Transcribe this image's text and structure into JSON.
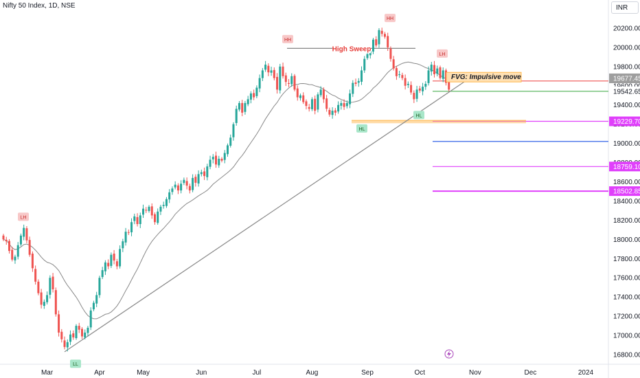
{
  "header": {
    "title": "Nifty 50 Index, 1D, NSE",
    "currency": "INR"
  },
  "colors": {
    "up": "#26a69a",
    "down": "#ef5350",
    "ma": "#888888",
    "trend": "#888888",
    "red_line": "#ef5350",
    "green_line": "#4caf50",
    "magenta": "#e040fb",
    "blue": "#1e53e5",
    "orange": "#ffb74d"
  },
  "chart_data": {
    "type": "candlestick",
    "title": "Nifty 50 Index, 1D, NSE",
    "y_axis": {
      "min": 16700,
      "max": 20350,
      "ticks": [
        16800,
        17000,
        17200,
        17400,
        17600,
        17800,
        18000,
        18200,
        18400,
        18600,
        18800,
        19000,
        19200,
        19400,
        19600,
        19800,
        20000,
        20200
      ],
      "tick_labels": [
        "16800.00",
        "17000.00",
        "17200.00",
        "17400.00",
        "17600.00",
        "17800.00",
        "18000.00",
        "18200.00",
        "18400.00",
        "18600.00",
        "18800.00",
        "19000.00",
        "19200.00",
        "19400.00",
        "19600.00",
        "19800.00",
        "20000.00",
        "20200.00"
      ]
    },
    "x_axis": {
      "labels": [
        "Mar",
        "Apr",
        "May",
        "Jun",
        "Jul",
        "Aug",
        "Sep",
        "Oct",
        "Nov",
        "Dec",
        "2024"
      ]
    },
    "price_tags": [
      {
        "label": "19677.45",
        "value": 19677.45,
        "color": "#9e9e9e"
      },
      {
        "label": "19542.65",
        "value": 19542.65,
        "color": "#ffffff"
      },
      {
        "label": "19229.70",
        "value": 19229.7,
        "color": "#e040fb"
      },
      {
        "label": "18759.10",
        "value": 18759.1,
        "color": "#e040fb"
      },
      {
        "label": "18502.85",
        "value": 18502.85,
        "color": "#e040fb"
      }
    ],
    "levels": [
      {
        "value": 19650,
        "color": "#ef5350",
        "label": ""
      },
      {
        "value": 19542.65,
        "color": "#4caf50",
        "label": ""
      },
      {
        "value": 19229.7,
        "color": "#e040fb",
        "label": ""
      },
      {
        "value": 19020,
        "color": "#1e53e5",
        "label": ""
      },
      {
        "value": 18759.1,
        "color": "#e040fb",
        "label": ""
      },
      {
        "value": 18502.85,
        "color": "#e040fb",
        "label": ""
      }
    ],
    "annotations": [
      {
        "text": "LH",
        "value": 18150,
        "kind": "high"
      },
      {
        "text": "LL",
        "value": 16820,
        "kind": "low"
      },
      {
        "text": "HH",
        "value": 20000,
        "kind": "high"
      },
      {
        "text": "HL",
        "value": 19270,
        "kind": "low"
      },
      {
        "text": "HH",
        "value": 20220,
        "kind": "high"
      },
      {
        "text": "HL",
        "value": 19410,
        "kind": "low"
      },
      {
        "text": "LH",
        "value": 19850,
        "kind": "high"
      },
      {
        "text": "High Sweep",
        "value": 19990,
        "kind": "label"
      },
      {
        "text": "FVG: Impulsive move",
        "value": 19680,
        "kind": "box"
      }
    ],
    "closes": [
      18000,
      17980,
      17880,
      17790,
      17820,
      17940,
      18040,
      18120,
      17990,
      17840,
      17700,
      17560,
      17440,
      17320,
      17350,
      17420,
      17600,
      17480,
      17220,
      17030,
      16960,
      16880,
      16930,
      17010,
      16980,
      17100,
      17060,
      16990,
      17030,
      17080,
      17260,
      17340,
      17420,
      17600,
      17680,
      17760,
      17720,
      17840,
      17780,
      17720,
      17900,
      17980,
      18080,
      18070,
      18180,
      18240,
      18160,
      18250,
      18320,
      18300,
      18340,
      18250,
      18180,
      18290,
      18340,
      18360,
      18420,
      18490,
      18530,
      18570,
      18510,
      18580,
      18620,
      18560,
      18510,
      18640,
      18590,
      18680,
      18700,
      18660,
      18760,
      18830,
      18860,
      18780,
      18840,
      18820,
      18900,
      18980,
      19060,
      19200,
      19360,
      19420,
      19320,
      19420,
      19460,
      19520,
      19480,
      19580,
      19680,
      19760,
      19820,
      19740,
      19760,
      19680,
      19560,
      19800,
      19700,
      19640,
      19620,
      19700,
      19560,
      19480,
      19500,
      19430,
      19390,
      19360,
      19460,
      19340,
      19510,
      19560,
      19460,
      19360,
      19300,
      19340,
      19320,
      19400,
      19420,
      19380,
      19420,
      19520,
      19630,
      19620,
      19650,
      19760,
      19880,
      19930,
      19960,
      20080,
      20020,
      20180,
      20140,
      20110,
      20000,
      19880,
      19780,
      19700,
      19720,
      19680,
      19600,
      19620,
      19530,
      19460,
      19560,
      19550,
      19590,
      19620,
      19760,
      19820,
      19720,
      19780,
      19680,
      19760,
      19630,
      19560
    ]
  }
}
